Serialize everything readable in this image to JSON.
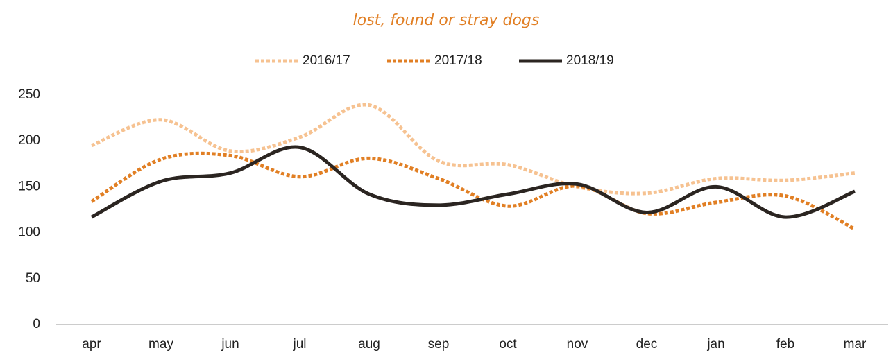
{
  "chart_data": {
    "type": "line",
    "title": "lost, found or stray dogs",
    "categories": [
      "apr",
      "may",
      "jun",
      "jul",
      "aug",
      "sep",
      "oct",
      "nov",
      "dec",
      "jan",
      "feb",
      "mar"
    ],
    "series": [
      {
        "name": "2016/17",
        "color": "#f6c291",
        "dash": "dotted",
        "values": [
          195,
          223,
          189,
          204,
          239,
          178,
          174,
          150,
          143,
          159,
          157,
          165
        ]
      },
      {
        "name": "2017/18",
        "color": "#e17f24",
        "dash": "dotted",
        "values": [
          134,
          180,
          184,
          161,
          181,
          159,
          129,
          151,
          121,
          133,
          140,
          104
        ]
      },
      {
        "name": "2018/19",
        "color": "#2b2521",
        "dash": "solid",
        "values": [
          117,
          156,
          165,
          193,
          142,
          130,
          142,
          153,
          122,
          150,
          117,
          145
        ]
      }
    ],
    "ylim": [
      0,
      250
    ],
    "yticks": [
      0,
      50,
      100,
      150,
      200,
      250
    ],
    "grid": false,
    "legend": "top"
  }
}
